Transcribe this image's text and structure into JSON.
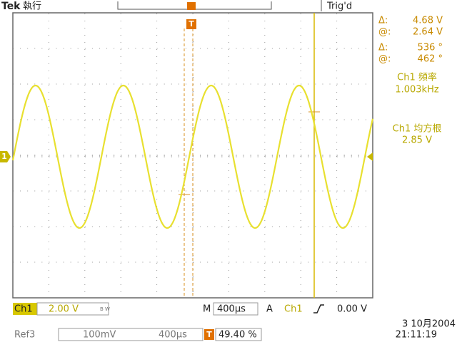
{
  "header": {
    "brand": "Tek",
    "mode": "執行",
    "trigger_marker": "T",
    "status": "Trig'd"
  },
  "readouts": [
    {
      "label": "Δ:",
      "value": "4.68 V"
    },
    {
      "label": "@:",
      "value": "2.64 V"
    },
    {
      "label": "Δ:",
      "value": "536 °"
    },
    {
      "label": "@:",
      "value": "462 °"
    }
  ],
  "measurements": [
    {
      "label": "Ch1 頻率",
      "value": "1.003kHz"
    },
    {
      "label": "Ch1 均方根",
      "value": "2.85 V"
    }
  ],
  "channel_marker": "1",
  "footer": {
    "channel": "Ch1",
    "volts": "2.00 V",
    "bw": "B W",
    "m": "M",
    "timebase": "400µs",
    "a": "A",
    "trig_channel": "Ch1",
    "trig_level": "0.00 V",
    "ref": "Ref3",
    "ref_volts": "100mV",
    "ref_time": "400µs",
    "t": "T",
    "position": "49.40 %",
    "date": "3 10月2004",
    "time": "21:11:19"
  }
}
